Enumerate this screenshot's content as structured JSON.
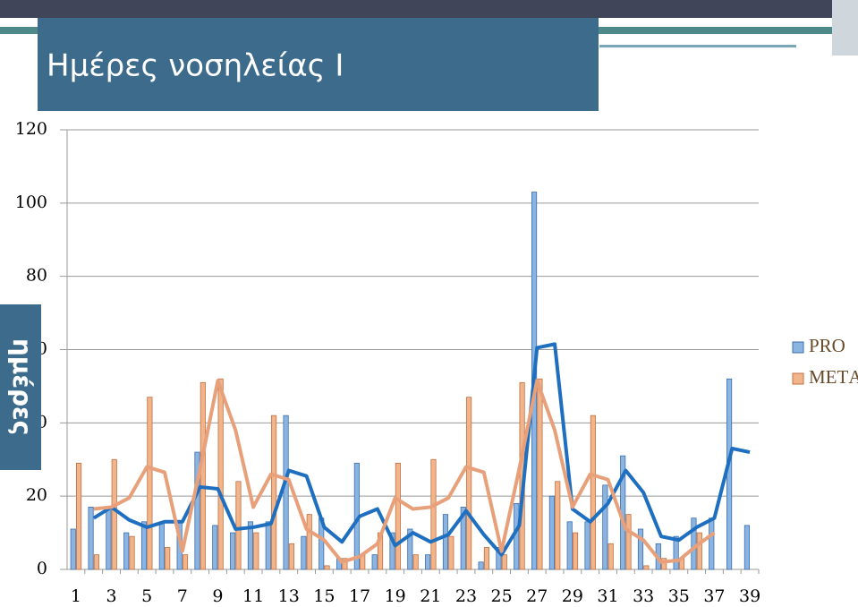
{
  "chart_data": {
    "type": "bar",
    "title": "Ημέρες νοσηλείας Ι",
    "y_label": "ημέρες",
    "categories": [
      "1",
      null,
      "3",
      null,
      "5",
      null,
      "7",
      null,
      "9",
      null,
      "11",
      null,
      "13",
      null,
      "15",
      null,
      "17",
      null,
      "19",
      null,
      "21",
      null,
      "23",
      null,
      "25",
      null,
      "27",
      null,
      "29",
      null,
      "31",
      null,
      "33",
      null,
      "35",
      null,
      "37",
      null,
      "39"
    ],
    "series": [
      {
        "name": "PRO",
        "color": "#8cb4e0",
        "values": [
          11,
          17,
          17,
          10,
          13,
          13,
          13,
          32,
          12,
          10,
          13,
          13,
          42,
          9,
          14,
          3,
          29,
          4,
          10,
          11,
          4,
          15,
          17,
          2,
          6,
          18,
          103,
          20,
          13,
          13,
          23,
          31,
          11,
          7,
          9,
          14,
          14,
          52,
          12
        ]
      },
      {
        "name": "METΑ",
        "color": "#f2b48a",
        "values": [
          29,
          4,
          30,
          9,
          47,
          6,
          4,
          51,
          52,
          24,
          10,
          42,
          7,
          15,
          1,
          3,
          4,
          10,
          29,
          4,
          30,
          9,
          47,
          6,
          4,
          51,
          52,
          24,
          10,
          42,
          7,
          15,
          1,
          3,
          3,
          10,
          null,
          null,
          null
        ]
      }
    ],
    "lines": [
      {
        "color": "#1f6fc0",
        "values": [
          null,
          14,
          17,
          13.5,
          11.5,
          13,
          13,
          22.5,
          22,
          11,
          11.5,
          12.5,
          27,
          25.5,
          11.5,
          7.5,
          14.5,
          16.5,
          6.5,
          10,
          7.5,
          9.5,
          16,
          9.5,
          4,
          12,
          60.5,
          61.5,
          16.5,
          13,
          18,
          27,
          21,
          9,
          8,
          11.5,
          14,
          33,
          32
        ]
      },
      {
        "color": "#e8a07a",
        "values": [
          null,
          16.5,
          17,
          19.5,
          28,
          26.5,
          5,
          27.5,
          51.5,
          38,
          17,
          26,
          24.5,
          11,
          8,
          2,
          3.5,
          7,
          19.5,
          16.5,
          17,
          19.5,
          28,
          26.5,
          5,
          27.5,
          51.5,
          38,
          17,
          26,
          24.5,
          11,
          8,
          2,
          2.5,
          6.5,
          10,
          null,
          null
        ]
      }
    ],
    "ylim": [
      0,
      120
    ],
    "yticks": [
      0,
      20,
      40,
      60,
      80,
      100,
      120
    ],
    "grid": true
  }
}
